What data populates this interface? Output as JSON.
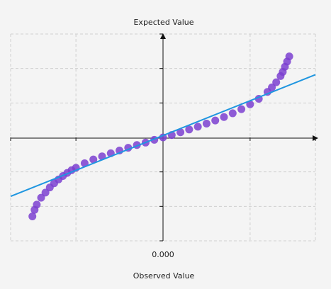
{
  "chart_data": {
    "type": "scatter",
    "y_label": "Expected Value",
    "x_label": "Observed Value",
    "xlim": [
      -3.5,
      3.5
    ],
    "ylim": [
      -3,
      3
    ],
    "xticks": [
      -3.5,
      -2,
      {
        "value": 0,
        "label": "0.000"
      },
      2,
      3.5
    ],
    "yticks": [
      -3,
      -2,
      -1,
      1,
      2,
      3
    ],
    "grid": true,
    "series": [
      {
        "color": "#7b3fd0",
        "x": [
          -3.0,
          -2.95,
          -2.9,
          -2.8,
          -2.7,
          -2.6,
          -2.5,
          -2.4,
          -2.3,
          -2.2,
          -2.1,
          -2.0,
          -1.8,
          -1.6,
          -1.4,
          -1.2,
          -1.0,
          -0.8,
          -0.6,
          -0.4,
          -0.2,
          0,
          0.2,
          0.4,
          0.6,
          0.8,
          1.0,
          1.2,
          1.4,
          1.6,
          1.8,
          2.0,
          2.2,
          2.4,
          2.5,
          2.6,
          2.7,
          2.75,
          2.8,
          2.85,
          2.9
        ],
        "values": [
          -2.29,
          -2.1,
          -1.95,
          -1.75,
          -1.6,
          -1.45,
          -1.33,
          -1.22,
          -1.12,
          -1.03,
          -0.95,
          -0.88,
          -0.75,
          -0.64,
          -0.55,
          -0.46,
          -0.38,
          -0.3,
          -0.22,
          -0.15,
          -0.07,
          0,
          0.07,
          0.15,
          0.23,
          0.31,
          0.4,
          0.49,
          0.59,
          0.7,
          0.82,
          0.96,
          1.12,
          1.32,
          1.45,
          1.6,
          1.78,
          1.9,
          2.05,
          2.2,
          2.35
        ]
      },
      {
        "type": "line",
        "color": "#1f96e0",
        "x": [
          -3.5,
          3.5
        ],
        "values": [
          -1.71,
          1.82
        ]
      }
    ]
  }
}
